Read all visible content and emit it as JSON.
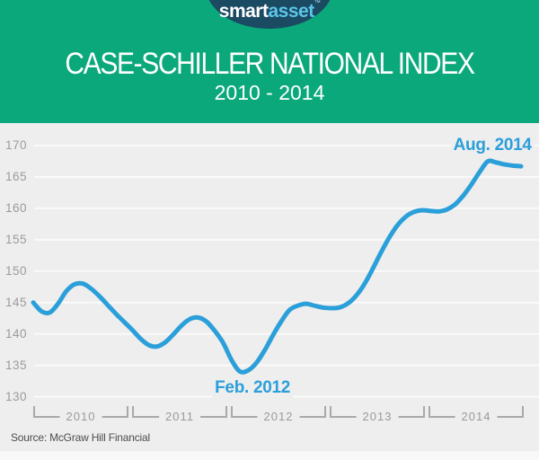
{
  "header": {
    "logo": {
      "part1": "smart",
      "part2": "asset",
      "tm": "™"
    },
    "title": "CASE-SCHILLER NATIONAL INDEX",
    "subtitle": "2010 - 2014"
  },
  "chart_data": {
    "type": "line",
    "title": "CASE-SCHILLER NATIONAL INDEX",
    "subtitle": "2010 - 2014",
    "x_start": "2010-01",
    "x_frequency": "monthly",
    "values": [
      145.0,
      143.6,
      143.4,
      144.8,
      146.8,
      147.9,
      148.0,
      147.2,
      146.0,
      144.6,
      143.2,
      141.9,
      140.6,
      139.2,
      138.2,
      138.0,
      138.7,
      140.0,
      141.4,
      142.4,
      142.6,
      141.9,
      140.4,
      138.5,
      135.8,
      134.0,
      134.2,
      135.4,
      137.4,
      139.8,
      142.0,
      143.8,
      144.5,
      144.8,
      144.5,
      144.2,
      144.1,
      144.2,
      144.8,
      146.0,
      147.8,
      150.2,
      152.8,
      155.2,
      157.2,
      158.6,
      159.4,
      159.7,
      159.6,
      159.5,
      159.8,
      160.6,
      162.0,
      163.8,
      165.8,
      167.5,
      167.3,
      167.0,
      166.8,
      166.7
    ],
    "yticks": [
      130,
      135,
      140,
      145,
      150,
      155,
      160,
      165,
      170
    ],
    "ylim": [
      130,
      170
    ],
    "year_categories": [
      "2010",
      "2011",
      "2012",
      "2013",
      "2014"
    ],
    "grid": true,
    "legend": "none",
    "annotations": [
      {
        "text": "Aug. 2014",
        "month": "2014-08",
        "placement": "above"
      },
      {
        "text": "Feb. 2012",
        "month": "2012-02",
        "placement": "below"
      }
    ],
    "colors": {
      "line": "#2b9fd9",
      "grid": "#fafafa",
      "panel_bg": "#eeeeee",
      "axis_text": "#9b9b9b",
      "bracket": "#a9a9a9",
      "annotation": "#2b9fd9",
      "header_bg": "#0ba87c",
      "logo_bg": "#1b4a63",
      "logo_accent": "#5bc5e9"
    }
  },
  "source": {
    "label": "Source: McGraw Hill Financial"
  }
}
